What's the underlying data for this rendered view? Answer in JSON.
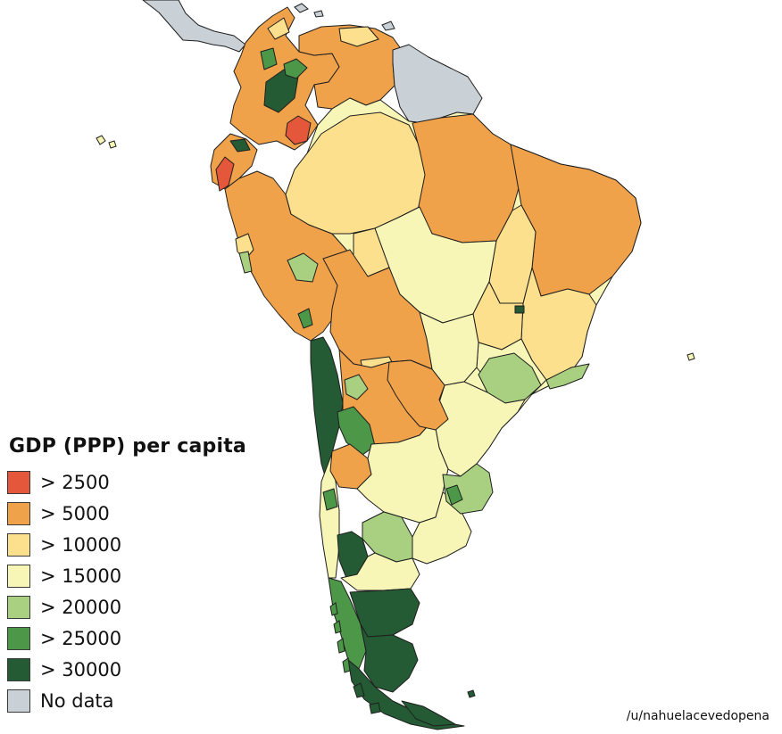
{
  "legend": {
    "title": "GDP (PPP) per capita",
    "items": [
      {
        "label": "> 2500",
        "color": "#e4573a"
      },
      {
        "label": "> 5000",
        "color": "#f0a24a"
      },
      {
        "label": "> 10000",
        "color": "#fce08e"
      },
      {
        "label": "> 15000",
        "color": "#f8f6b7"
      },
      {
        "label": "> 20000",
        "color": "#a8d080"
      },
      {
        "label": "> 25000",
        "color": "#4c9848"
      },
      {
        "label": "> 30000",
        "color": "#245b34"
      },
      {
        "label": "No data",
        "color": "#c9d0d6"
      }
    ]
  },
  "credit": "/u/nahuelacevedopena"
}
